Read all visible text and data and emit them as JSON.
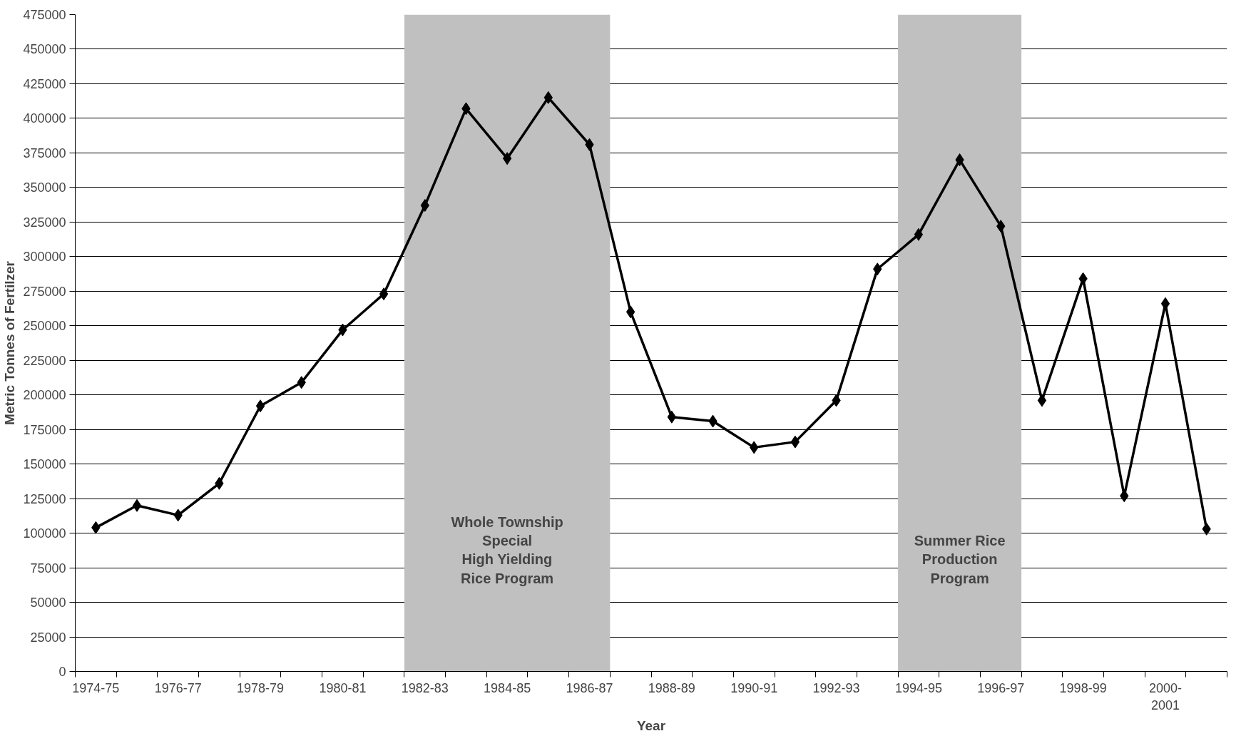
{
  "chart_data": {
    "type": "line",
    "xlabel": "Year",
    "ylabel": "Metric Tonnes of Fertilzer",
    "categories": [
      "1974-75",
      null,
      "1976-77",
      null,
      "1978-79",
      null,
      "1980-81",
      null,
      "1982-83",
      null,
      "1984-85",
      null,
      "1986-87",
      null,
      "1988-89",
      null,
      "1990-91",
      null,
      "1992-93",
      null,
      "1994-95",
      null,
      "1996-97",
      null,
      "1998-99",
      null,
      "2000-\n2001",
      null
    ],
    "series": [
      {
        "color": "#000000",
        "values": [
          104000,
          120000,
          113000,
          136000,
          192000,
          209000,
          247000,
          273000,
          337000,
          407000,
          371000,
          415000,
          381000,
          260000,
          184000,
          181000,
          162000,
          166000,
          196000,
          291000,
          316000,
          370000,
          322000,
          196000,
          284000,
          127000,
          266000,
          103000
        ]
      }
    ],
    "ylim": [
      0,
      475000
    ],
    "yticks": [
      0,
      25000,
      50000,
      75000,
      100000,
      125000,
      150000,
      175000,
      200000,
      225000,
      250000,
      275000,
      300000,
      325000,
      350000,
      375000,
      400000,
      425000,
      450000,
      475000
    ],
    "bands": [
      {
        "axis": "x",
        "from": "1982-83",
        "to": "1986-87",
        "label": "Whole Township\nSpecial\nHigh Yielding\nRice Program",
        "color": "#c0c0c0"
      },
      {
        "axis": "x",
        "from": "1994-95",
        "to": "1996-97",
        "label": "Summer Rice\nProduction\nProgram",
        "color": "#c0c0c0"
      }
    ],
    "grid": "y",
    "marker": "diamond",
    "line_style": "solid"
  }
}
